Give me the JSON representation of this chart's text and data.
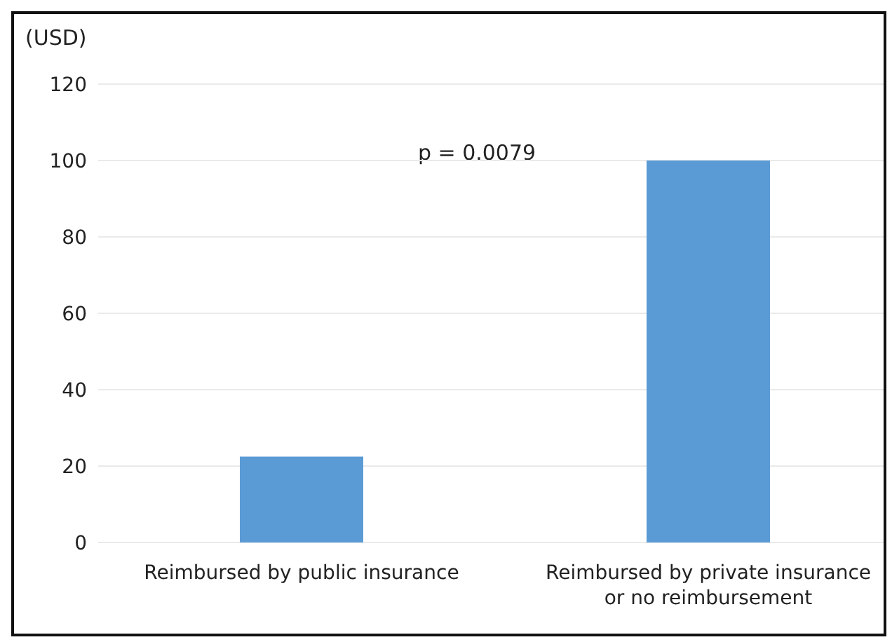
{
  "chart_data": {
    "type": "bar",
    "ylabel": "(USD)",
    "categories": [
      "Reimbursed by public insurance",
      "Reimbursed by private insurance or no reimbursement"
    ],
    "values": [
      22.5,
      100
    ],
    "color": "#5b9bd5",
    "ylim": [
      0,
      120
    ],
    "yticks": [
      0,
      20,
      40,
      60,
      80,
      100,
      120
    ],
    "grid": "y",
    "annotations": [
      "p = 0.0079"
    ]
  }
}
